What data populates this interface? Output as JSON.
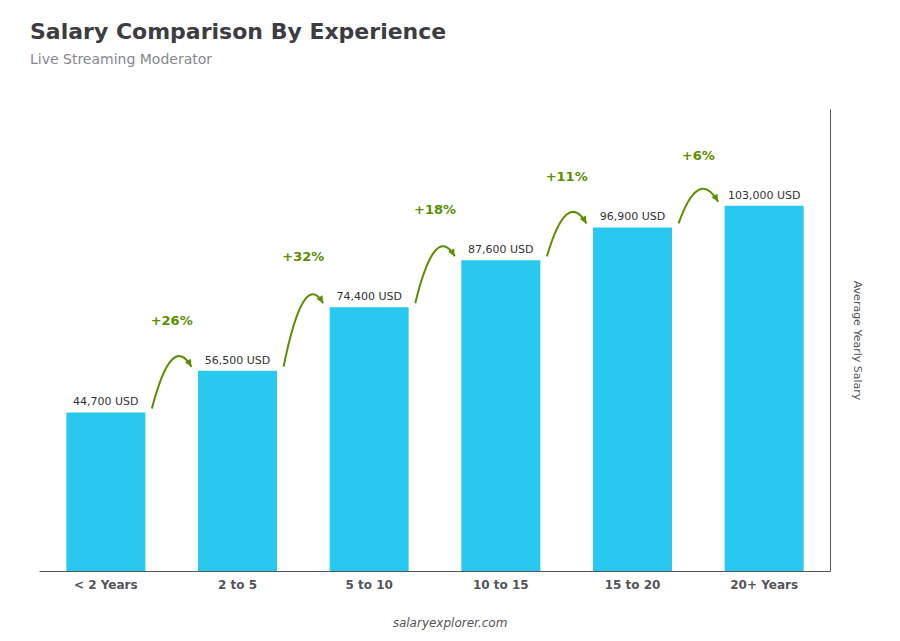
{
  "chart_data": {
    "type": "bar",
    "title": "Salary Comparison By Experience",
    "subtitle": "Live Streaming Moderator",
    "categories": [
      "< 2 Years",
      "2 to 5",
      "5 to 10",
      "10 to 15",
      "15 to 20",
      "20+ Years"
    ],
    "values": [
      44700,
      56500,
      74400,
      87600,
      96900,
      103000
    ],
    "value_labels": [
      "44,700 USD",
      "56,500 USD",
      "74,400 USD",
      "87,600 USD",
      "96,900 USD",
      "103,000 USD"
    ],
    "data_labels": true,
    "annotations": [
      "+26%",
      "+32%",
      "+18%",
      "+11%",
      "+6%"
    ],
    "ylabel": "Average Yearly Salary",
    "footer": "salaryexplorer.com",
    "color": "#29c9ef",
    "ylim": [
      0,
      130000
    ],
    "yticks": [],
    "tick_labels": "x",
    "grid": false
  }
}
